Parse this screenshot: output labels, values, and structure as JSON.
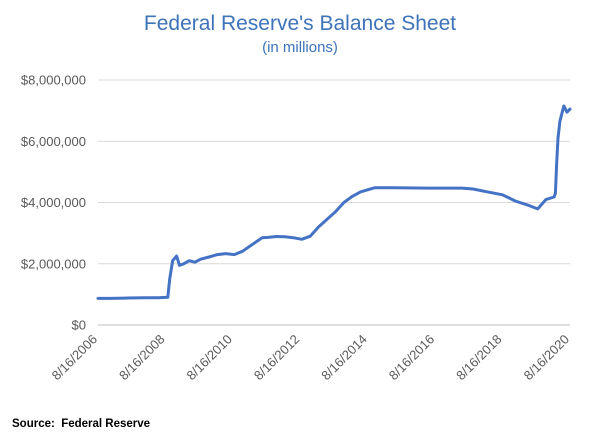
{
  "chart_data": {
    "type": "line",
    "title": "Federal Reserve's Balance Sheet",
    "subtitle": "(in millions)",
    "xlabel": "",
    "ylabel": "",
    "ylim": [
      0,
      8000000
    ],
    "yticks": [
      0,
      2000000,
      4000000,
      6000000,
      8000000
    ],
    "ytick_labels": [
      "$0",
      "$2,000,000",
      "$4,000,000",
      "$6,000,000",
      "$8,000,000"
    ],
    "xlim": [
      "2006-08-16",
      "2020-08-16"
    ],
    "xticks": [
      "2006-08-16",
      "2008-08-16",
      "2010-08-16",
      "2012-08-16",
      "2014-08-16",
      "2016-08-16",
      "2018-08-16",
      "2020-08-16"
    ],
    "xtick_labels": [
      "8/16/2006",
      "8/16/2008",
      "8/16/2010",
      "8/16/2012",
      "8/16/2014",
      "8/16/2016",
      "8/16/2018",
      "8/16/2020"
    ],
    "grid": true,
    "legend": "none",
    "line_color": "#4472c4",
    "series": [
      {
        "x": [
          "2006-08-16",
          "2007-01-01",
          "2007-06-01",
          "2008-01-01",
          "2008-06-01",
          "2008-09-10",
          "2008-10-01",
          "2008-11-01",
          "2008-12-15",
          "2009-01-15",
          "2009-03-01",
          "2009-05-01",
          "2009-07-01",
          "2009-09-01",
          "2009-12-01",
          "2010-03-01",
          "2010-06-01",
          "2010-09-01",
          "2010-12-01",
          "2011-03-01",
          "2011-06-30",
          "2011-09-01",
          "2011-12-01",
          "2012-03-01",
          "2012-06-01",
          "2012-09-01",
          "2012-12-01",
          "2013-03-01",
          "2013-06-01",
          "2013-09-01",
          "2013-12-01",
          "2014-03-01",
          "2014-06-01",
          "2014-10-29",
          "2015-06-01",
          "2016-06-01",
          "2017-06-01",
          "2017-10-01",
          "2018-03-01",
          "2018-08-16",
          "2019-01-01",
          "2019-06-01",
          "2019-09-01",
          "2019-12-01",
          "2020-02-26",
          "2020-03-11",
          "2020-03-25",
          "2020-04-08",
          "2020-04-29",
          "2020-06-10",
          "2020-07-15",
          "2020-08-16"
        ],
        "y": [
          870000,
          870000,
          880000,
          890000,
          890000,
          905000,
          1500000,
          2100000,
          2250000,
          1950000,
          2000000,
          2100000,
          2050000,
          2150000,
          2220000,
          2300000,
          2330000,
          2300000,
          2410000,
          2600000,
          2850000,
          2860000,
          2890000,
          2880000,
          2850000,
          2800000,
          2900000,
          3200000,
          3450000,
          3700000,
          4000000,
          4200000,
          4350000,
          4480000,
          4480000,
          4470000,
          4470000,
          4440000,
          4350000,
          4250000,
          4050000,
          3900000,
          3790000,
          4100000,
          4180000,
          4300000,
          5300000,
          6100000,
          6650000,
          7150000,
          6950000,
          7050000
        ]
      }
    ],
    "source": "Source:  Federal Reserve"
  }
}
